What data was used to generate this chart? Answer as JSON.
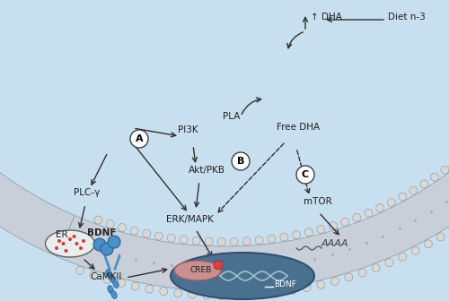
{
  "bg_color": "#c8dff0",
  "membrane_color": "#b0b8c0",
  "membrane_inner_color": "#d8e0e8",
  "blue_color": "#4a90c4",
  "dark_blue": "#2060a0",
  "nucleus_color": "#5580a0",
  "creb_color": "#e0a0a0",
  "arrow_color": "#303030",
  "label_A": "A",
  "label_B": "B",
  "label_C": "C",
  "text_BDNF": "BDNF",
  "text_PI3K": "PI3K",
  "text_PLA": "PLA",
  "text_FreeDHA": "Free DHA",
  "text_AktPKB": "Akt/PKB",
  "text_ERK": "ERK/MAPK",
  "text_mTOR": "mTOR",
  "text_PLCg": "PLC-γ",
  "text_ER": "ER",
  "text_CaMKII": "CaMKII",
  "text_CREB": "CREB",
  "text_BDNFnucleus": "BDNF",
  "text_AAAA": "AAAA",
  "text_DHA": "↑ DHA",
  "text_Dietn3": "Diet n-3",
  "dot_color": "#ff4444"
}
